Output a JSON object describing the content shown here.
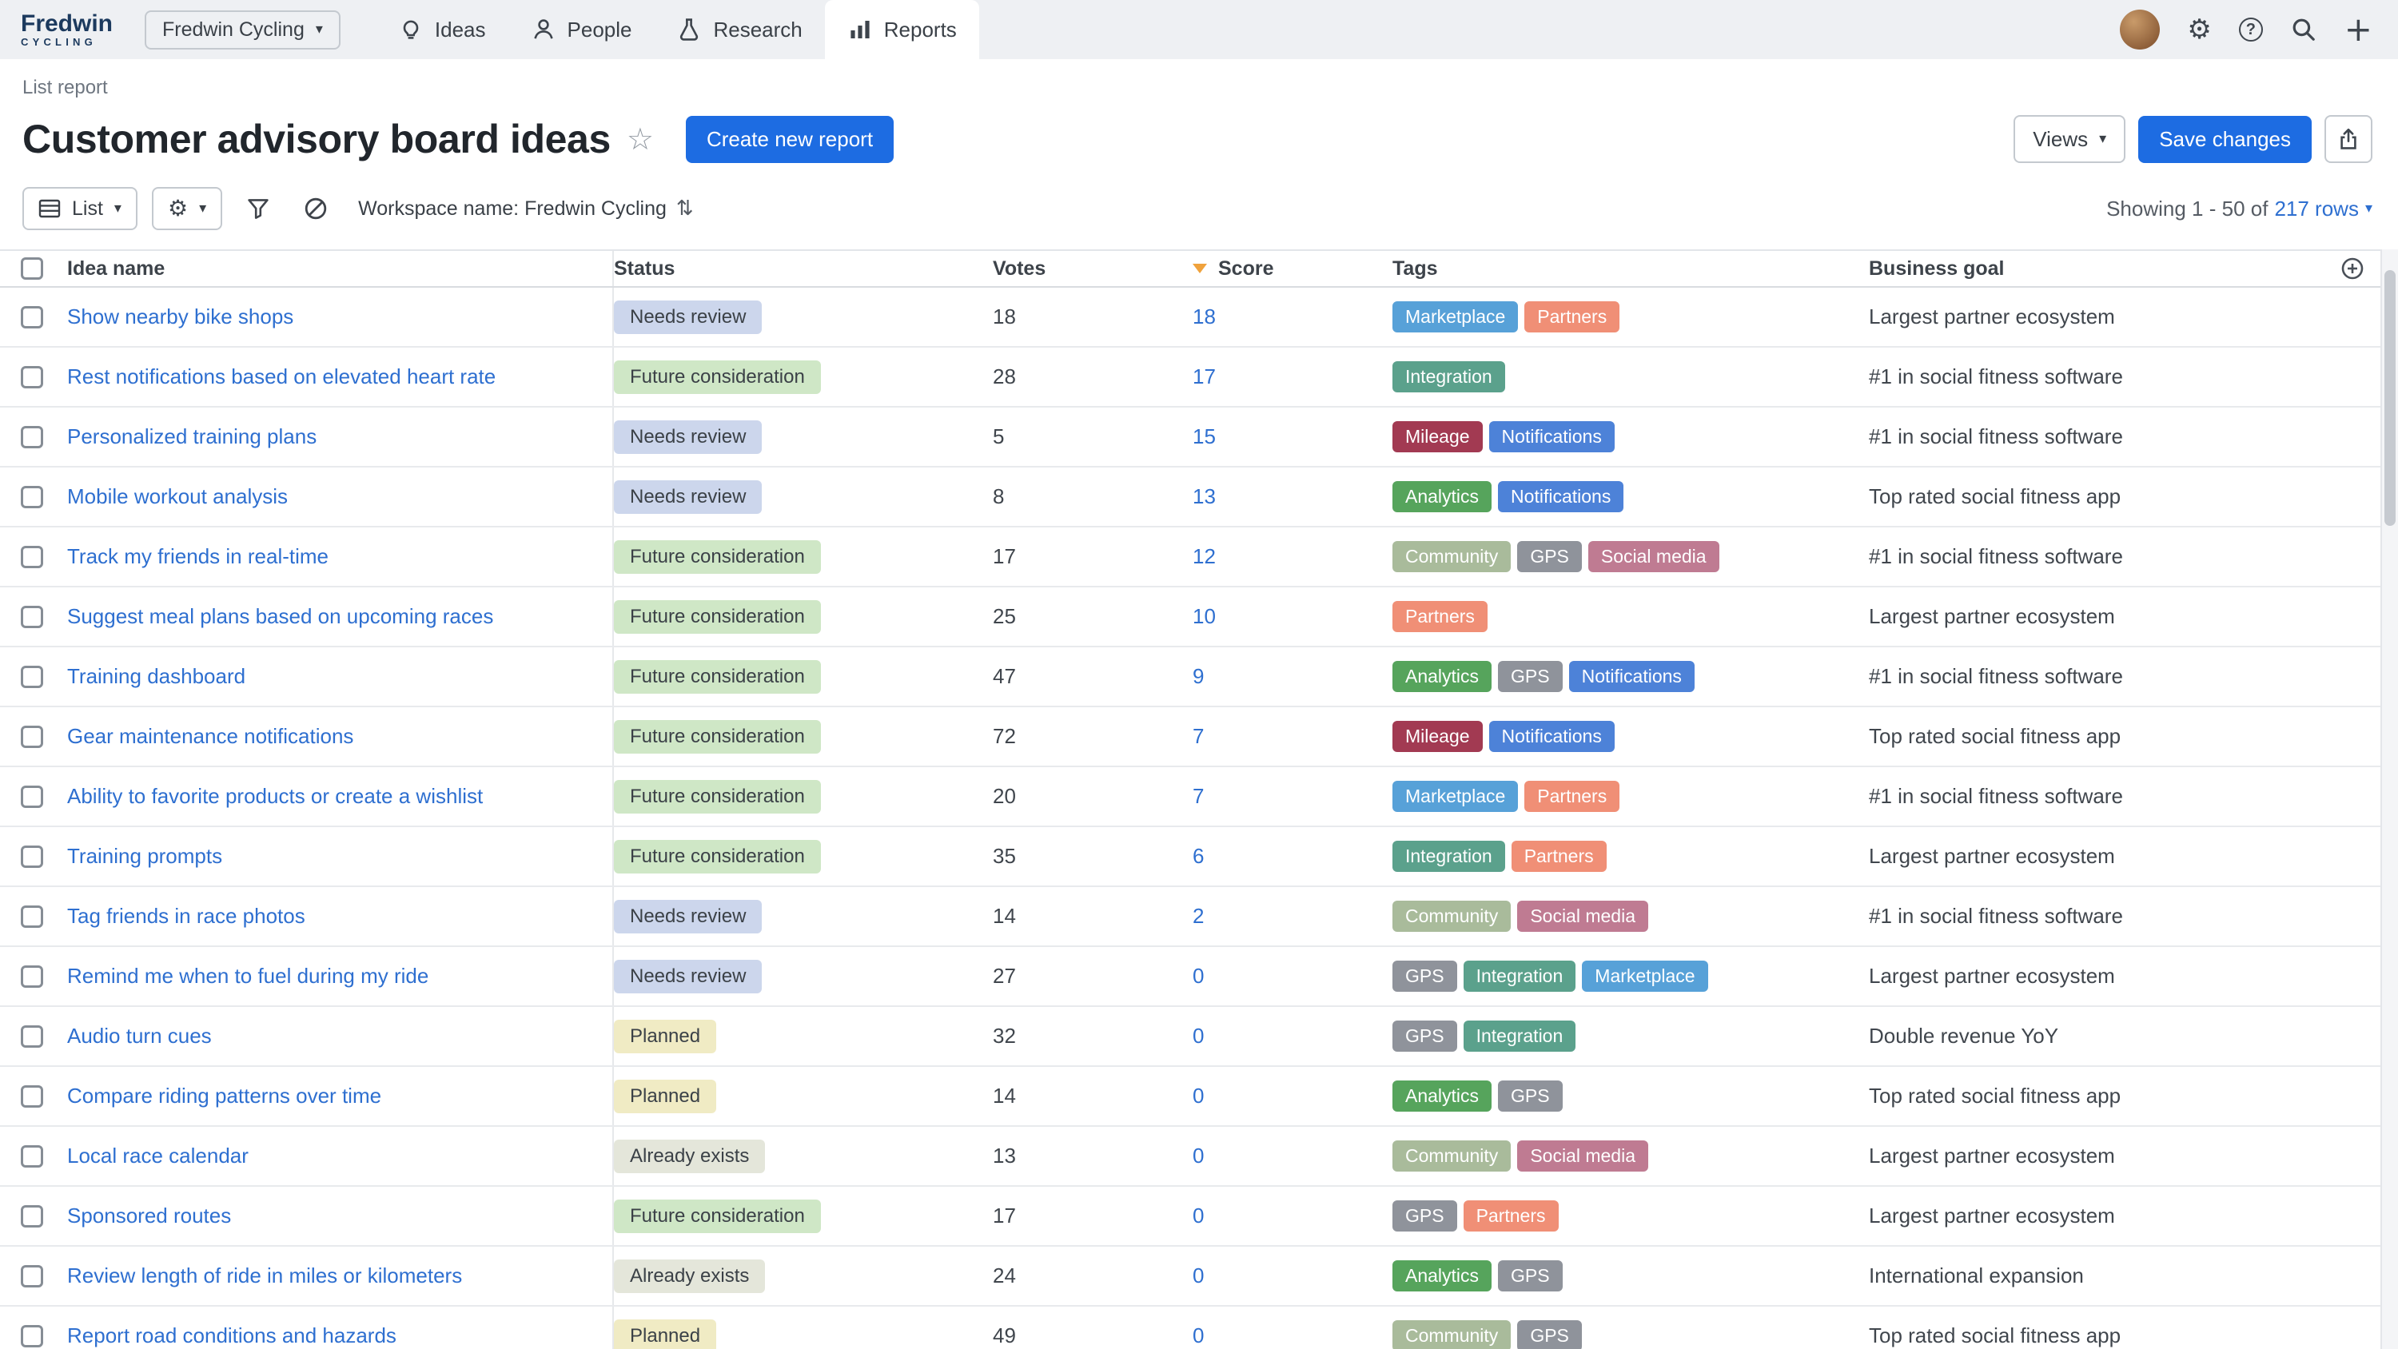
{
  "brand": {
    "name": "Fredwin",
    "tagline": "CYCLING"
  },
  "nav": {
    "workspace_selector": "Fredwin Cycling",
    "items": [
      {
        "label": "Ideas"
      },
      {
        "label": "People"
      },
      {
        "label": "Research"
      },
      {
        "label": "Reports",
        "active": true
      }
    ]
  },
  "header": {
    "report_type": "List report",
    "title": "Customer advisory board ideas",
    "create_button": "Create new report",
    "views_button": "Views",
    "save_button": "Save changes"
  },
  "toolbar": {
    "list_button": "List",
    "workspace_filter": "Workspace name: Fredwin Cycling",
    "showing_prefix": "Showing 1 - 50 of",
    "rows_link": "217 rows"
  },
  "table": {
    "columns": [
      "Idea name",
      "Status",
      "Votes",
      "Score",
      "Tags",
      "Business goal"
    ],
    "sort": {
      "column": "Score",
      "direction": "desc"
    },
    "rows": [
      {
        "name": "Show nearby bike shops",
        "status": "Needs review",
        "votes": 18,
        "score": 18,
        "tags": [
          "Marketplace",
          "Partners"
        ],
        "goal": "Largest partner ecosystem"
      },
      {
        "name": "Rest notifications based on elevated heart rate",
        "status": "Future consideration",
        "votes": 28,
        "score": 17,
        "tags": [
          "Integration"
        ],
        "goal": "#1 in social fitness software"
      },
      {
        "name": "Personalized training plans",
        "status": "Needs review",
        "votes": 5,
        "score": 15,
        "tags": [
          "Mileage",
          "Notifications"
        ],
        "goal": "#1 in social fitness software"
      },
      {
        "name": "Mobile workout analysis",
        "status": "Needs review",
        "votes": 8,
        "score": 13,
        "tags": [
          "Analytics",
          "Notifications"
        ],
        "goal": "Top rated social fitness app"
      },
      {
        "name": "Track my friends in real-time",
        "status": "Future consideration",
        "votes": 17,
        "score": 12,
        "tags": [
          "Community",
          "GPS",
          "Social media"
        ],
        "goal": "#1 in social fitness software"
      },
      {
        "name": "Suggest meal plans based on upcoming races",
        "status": "Future consideration",
        "votes": 25,
        "score": 10,
        "tags": [
          "Partners"
        ],
        "goal": "Largest partner ecosystem"
      },
      {
        "name": "Training dashboard",
        "status": "Future consideration",
        "votes": 47,
        "score": 9,
        "tags": [
          "Analytics",
          "GPS",
          "Notifications"
        ],
        "goal": "#1 in social fitness software"
      },
      {
        "name": "Gear maintenance notifications",
        "status": "Future consideration",
        "votes": 72,
        "score": 7,
        "tags": [
          "Mileage",
          "Notifications"
        ],
        "goal": "Top rated social fitness app"
      },
      {
        "name": "Ability to favorite products or create a wishlist",
        "status": "Future consideration",
        "votes": 20,
        "score": 7,
        "tags": [
          "Marketplace",
          "Partners"
        ],
        "goal": "#1 in social fitness software"
      },
      {
        "name": "Training prompts",
        "status": "Future consideration",
        "votes": 35,
        "score": 6,
        "tags": [
          "Integration",
          "Partners"
        ],
        "goal": "Largest partner ecosystem"
      },
      {
        "name": "Tag friends in race photos",
        "status": "Needs review",
        "votes": 14,
        "score": 2,
        "tags": [
          "Community",
          "Social media"
        ],
        "goal": "#1 in social fitness software"
      },
      {
        "name": "Remind me when to fuel during my ride",
        "status": "Needs review",
        "votes": 27,
        "score": 0,
        "tags": [
          "GPS",
          "Integration",
          "Marketplace"
        ],
        "goal": "Largest partner ecosystem"
      },
      {
        "name": "Audio turn cues",
        "status": "Planned",
        "votes": 32,
        "score": 0,
        "tags": [
          "GPS",
          "Integration"
        ],
        "goal": "Double revenue YoY"
      },
      {
        "name": "Compare riding patterns over time",
        "status": "Planned",
        "votes": 14,
        "score": 0,
        "tags": [
          "Analytics",
          "GPS"
        ],
        "goal": "Top rated social fitness app"
      },
      {
        "name": "Local race calendar",
        "status": "Already exists",
        "votes": 13,
        "score": 0,
        "tags": [
          "Community",
          "Social media"
        ],
        "goal": "Largest partner ecosystem"
      },
      {
        "name": "Sponsored routes",
        "status": "Future consideration",
        "votes": 17,
        "score": 0,
        "tags": [
          "GPS",
          "Partners"
        ],
        "goal": "Largest partner ecosystem"
      },
      {
        "name": "Review length of ride in miles or kilometers",
        "status": "Already exists",
        "votes": 24,
        "score": 0,
        "tags": [
          "Analytics",
          "GPS"
        ],
        "goal": "International expansion"
      },
      {
        "name": "Report road conditions and hazards",
        "status": "Planned",
        "votes": 49,
        "score": 0,
        "tags": [
          "Community",
          "GPS"
        ],
        "goal": "Top rated social fitness app"
      }
    ]
  },
  "icons": {
    "gear": "⚙",
    "help": "?",
    "plus": "+",
    "star": "☆",
    "caret": "▾",
    "updown": "⇅"
  },
  "colors": {
    "accent": "#1d6ce2",
    "link": "#2e6fd0",
    "sort_arrow": "#f0a23c",
    "status": {
      "Needs review": "#ccd6ec",
      "Future consideration": "#cfe7c6",
      "Planned": "#f0ebc4",
      "Already exists": "#e4e6da"
    },
    "tags": {
      "Marketplace": "#57a1d8",
      "Partners": "#f08f76",
      "Integration": "#5ba18c",
      "Mileage": "#a23a52",
      "Notifications": "#4d82d8",
      "Analytics": "#56a45c",
      "Community": "#a9bb9b",
      "GPS": "#8f939b",
      "Social media": "#bf7b92"
    }
  }
}
